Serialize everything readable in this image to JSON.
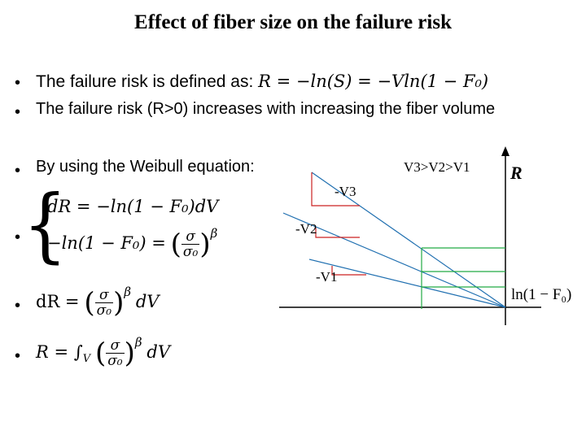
{
  "title": "Effect of fiber size on the failure risk",
  "bullets": {
    "b1_text": "The failure risk is defined as: ",
    "b1_formula": "R = −ln(S) = −Vln(1 − F₀)",
    "b2_text": "The failure risk (R>0) increases with increasing the fiber volume",
    "b3_text": "By using the Weibull  equation:",
    "eq1": "dR = −ln(1 − F₀)dV",
    "eq2_left": "−ln(1 − F₀) =",
    "eq3_left": "dR =",
    "eq3_right": "dV",
    "eq4_left": "R = ∫",
    "eq4_sub": "V",
    "eq4_right": "dV",
    "frac_num": "σ",
    "frac_den": "σ₀",
    "exponent": "β",
    "bullet_char": "•"
  },
  "diagram": {
    "relation_label": "V3>V2>V1",
    "y_axis_label": "R",
    "x_axis_label": "ln(1 − F₀)",
    "slope_labels": [
      "-V3",
      "-V2",
      "-V1"
    ],
    "colors": {
      "axis": "#000000",
      "lines": "#1f6fb0",
      "triangles": "#cc2222",
      "steps": "#22aa44"
    }
  }
}
